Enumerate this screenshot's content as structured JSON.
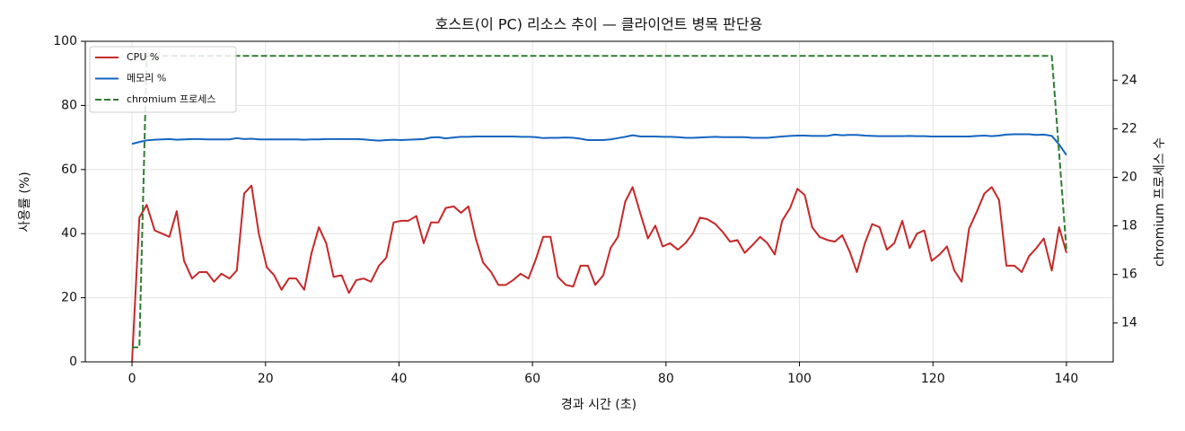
{
  "chart_data": {
    "type": "line",
    "title": "호스트(이 PC) 리소스 추이 — 클라이언트 병목 판단용",
    "xlabel": "경과 시간 (초)",
    "ylabel": "사용률 (%)",
    "y2label": "chromium 프로세스 수",
    "x": [
      0,
      1.1,
      2.2,
      3.4,
      4.5,
      5.6,
      6.7,
      7.8,
      9.0,
      10.1,
      11.2,
      12.3,
      13.4,
      14.6,
      15.7,
      16.8,
      17.9,
      19.0,
      20.2,
      21.3,
      22.4,
      23.5,
      24.6,
      25.8,
      26.9,
      28.0,
      29.1,
      30.2,
      31.4,
      32.5,
      33.6,
      34.7,
      35.8,
      37.0,
      38.1,
      39.2,
      40.3,
      41.4,
      42.6,
      43.7,
      44.8,
      45.9,
      47.0,
      48.2,
      49.3,
      50.4,
      51.5,
      52.6,
      53.8,
      54.9,
      56.0,
      57.1,
      58.2,
      59.4,
      60.5,
      61.6,
      62.7,
      63.8,
      65.0,
      66.1,
      67.2,
      68.3,
      69.4,
      70.6,
      71.7,
      72.8,
      73.9,
      75.0,
      76.2,
      77.3,
      78.4,
      79.5,
      80.6,
      81.8,
      82.9,
      84.0,
      85.1,
      86.2,
      87.4,
      88.5,
      89.6,
      90.7,
      91.8,
      93.0,
      94.1,
      95.2,
      96.3,
      97.4,
      98.6,
      99.7,
      100.8,
      101.9,
      103.0,
      104.2,
      105.3,
      106.4,
      107.5,
      108.6,
      109.8,
      110.9,
      112.0,
      113.1,
      114.2,
      115.4,
      116.5,
      117.6,
      118.7,
      119.8,
      121.0,
      122.1,
      123.2,
      124.3,
      125.4,
      126.6,
      127.7,
      128.8,
      129.9,
      131.0,
      132.2,
      133.3,
      134.4,
      135.5,
      136.6,
      137.8,
      138.9,
      140.0
    ],
    "series": [
      {
        "name": "CPU %",
        "color": "#c62828",
        "linestyle": "solid",
        "axis": "y",
        "values": [
          0,
          45,
          49,
          41,
          40,
          39,
          47,
          31.5,
          26,
          28,
          28,
          25,
          27.5,
          26,
          28.5,
          52.5,
          55,
          40,
          29.5,
          27,
          22.5,
          26,
          26,
          22.5,
          34,
          42,
          37,
          26.5,
          27,
          21.5,
          25.5,
          26,
          25,
          30,
          32.5,
          43.5,
          44,
          44,
          45.5,
          37,
          43.5,
          43.5,
          48,
          48.5,
          46.5,
          48.5,
          38.5,
          31,
          28,
          24,
          24,
          25.5,
          27.5,
          26,
          32,
          39,
          39,
          26.5,
          24,
          23.5,
          30,
          30,
          24,
          27,
          35.5,
          39,
          50,
          54.5,
          46,
          38.5,
          42.5,
          36,
          37,
          35,
          37,
          40,
          45,
          44.5,
          43,
          40.5,
          37.5,
          38,
          34,
          36.5,
          39,
          37,
          33.5,
          44,
          48,
          54,
          52,
          42,
          39,
          38,
          37.5,
          39.5,
          34.5,
          28,
          37,
          43,
          42,
          35,
          37,
          44,
          35.5,
          40,
          41,
          31.5,
          33.5,
          36,
          28.5,
          25,
          41.5,
          47,
          52.5,
          54.5,
          50.5,
          30,
          30,
          28,
          33,
          35.5,
          38.5,
          28.5,
          42,
          34
        ]
      },
      {
        "name": "메모리 %",
        "color": "#1565c0",
        "linestyle": "solid",
        "axis": "y",
        "values": [
          68,
          68.6,
          69.1,
          69.3,
          69.4,
          69.5,
          69.3,
          69.4,
          69.5,
          69.5,
          69.4,
          69.4,
          69.4,
          69.4,
          69.8,
          69.5,
          69.6,
          69.4,
          69.4,
          69.4,
          69.4,
          69.4,
          69.4,
          69.3,
          69.4,
          69.4,
          69.5,
          69.5,
          69.5,
          69.5,
          69.5,
          69.4,
          69.2,
          69.0,
          69.2,
          69.3,
          69.2,
          69.3,
          69.4,
          69.5,
          70,
          70.1,
          69.7,
          70,
          70.2,
          70.2,
          70.3,
          70.3,
          70.3,
          70.3,
          70.3,
          70.3,
          70.2,
          70.2,
          70.1,
          69.8,
          69.9,
          69.9,
          70,
          69.9,
          69.6,
          69.2,
          69.2,
          69.2,
          69.4,
          69.8,
          70.2,
          70.7,
          70.3,
          70.3,
          70.3,
          70.2,
          70.2,
          70.1,
          69.9,
          69.9,
          70,
          70.1,
          70.2,
          70.1,
          70.1,
          70.1,
          70.1,
          69.9,
          69.9,
          69.9,
          70.1,
          70.3,
          70.5,
          70.6,
          70.6,
          70.5,
          70.5,
          70.5,
          70.9,
          70.7,
          70.8,
          70.8,
          70.6,
          70.5,
          70.4,
          70.4,
          70.4,
          70.4,
          70.5,
          70.4,
          70.4,
          70.3,
          70.3,
          70.3,
          70.3,
          70.3,
          70.3,
          70.5,
          70.6,
          70.4,
          70.6,
          70.9,
          71,
          71,
          71,
          70.8,
          70.9,
          70.5,
          67.8,
          64.5
        ]
      },
      {
        "name": "chromium 프로세스",
        "color": "#2e7d32",
        "linestyle": "dashed",
        "axis": "y2",
        "values": [
          13,
          13,
          25,
          25,
          25,
          25,
          25,
          25,
          25,
          25,
          25,
          25,
          25,
          25,
          25,
          25,
          25,
          25,
          25,
          25,
          25,
          25,
          25,
          25,
          25,
          25,
          25,
          25,
          25,
          25,
          25,
          25,
          25,
          25,
          25,
          25,
          25,
          25,
          25,
          25,
          25,
          25,
          25,
          25,
          25,
          25,
          25,
          25,
          25,
          25,
          25,
          25,
          25,
          25,
          25,
          25,
          25,
          25,
          25,
          25,
          25,
          25,
          25,
          25,
          25,
          25,
          25,
          25,
          25,
          25,
          25,
          25,
          25,
          25,
          25,
          25,
          25,
          25,
          25,
          25,
          25,
          25,
          25,
          25,
          25,
          25,
          25,
          25,
          25,
          25,
          25,
          25,
          25,
          25,
          25,
          25,
          25,
          25,
          25,
          25,
          25,
          25,
          25,
          25,
          25,
          25,
          25,
          25,
          25,
          25,
          25,
          25,
          25,
          25,
          25,
          25,
          25,
          25,
          25,
          25,
          25,
          25,
          25,
          25,
          21,
          17
        ]
      }
    ],
    "xlim": [
      -7,
      147
    ],
    "xticks": [
      0,
      20,
      40,
      60,
      80,
      100,
      120,
      140
    ],
    "ylim": [
      0,
      100
    ],
    "yticks": [
      0,
      20,
      40,
      60,
      80,
      100
    ],
    "y2lim": [
      12.4,
      25.6
    ],
    "y2ticks": [
      14,
      16,
      18,
      20,
      22,
      24
    ],
    "grid": true,
    "legend": "upper left"
  }
}
